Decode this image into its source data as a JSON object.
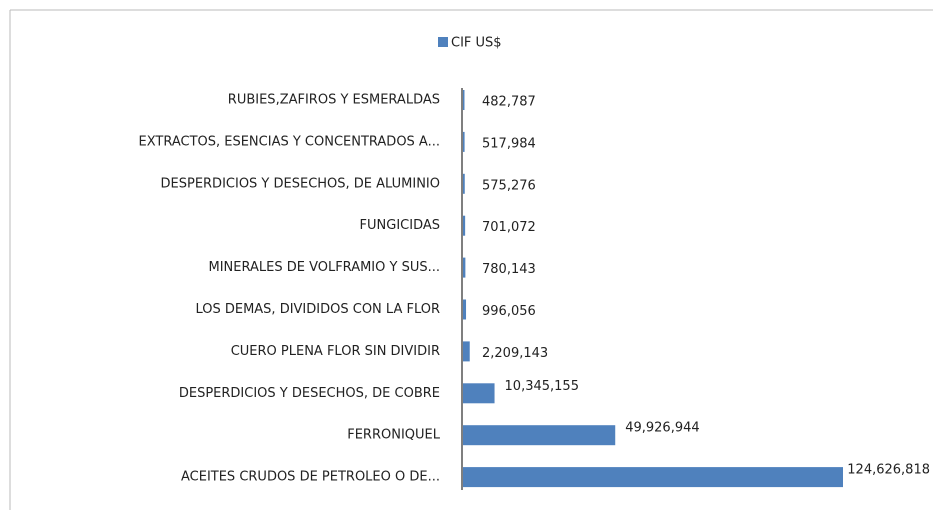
{
  "chart_data": {
    "type": "bar",
    "orientation": "horizontal",
    "categories": [
      "RUBIES,ZAFIROS Y ESMERALDAS",
      "EXTRACTOS, ESENCIAS Y CONCENTRADOS A...",
      "DESPERDICIOS Y DESECHOS, DE ALUMINIO",
      "FUNGICIDAS",
      "MINERALES DE VOLFRAMIO Y SUS...",
      "LOS DEMAS, DIVIDIDOS CON LA FLOR",
      "CUERO PLENA FLOR SIN DIVIDIR",
      "DESPERDICIOS Y DESECHOS, DE COBRE",
      "FERRONIQUEL",
      "ACEITES CRUDOS DE PETROLEO O DE..."
    ],
    "series": [
      {
        "name": "CIF US$",
        "color": "#4f81bd",
        "values": [
          482787,
          517984,
          575276,
          701072,
          780143,
          996056,
          2209143,
          10345155,
          49926944,
          124626818
        ],
        "value_labels": [
          "482,787",
          "517,984",
          "575,276",
          "701,072",
          "780,143",
          "996,056",
          "2,209,143",
          "10,345,155",
          "49,926,944",
          "124,626,818"
        ]
      }
    ],
    "legend": "top"
  }
}
